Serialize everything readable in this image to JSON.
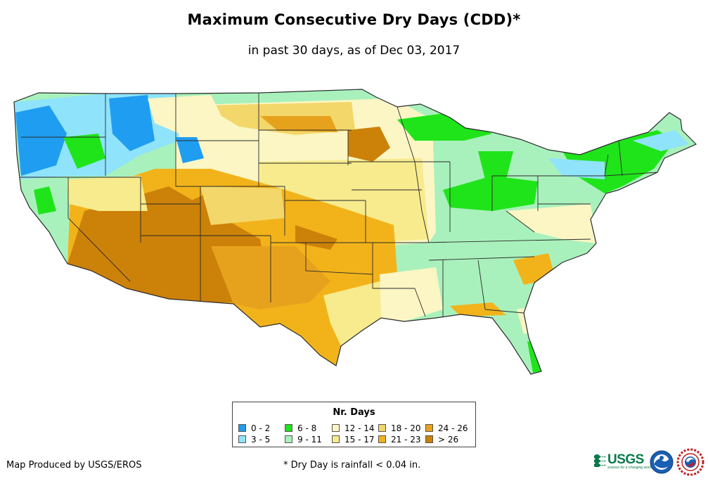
{
  "title": "Maximum Consecutive Dry Days (CDD)*",
  "subtitle": "in past 30 days, as of Dec 03, 2017",
  "legend": {
    "title": "Nr. Days",
    "items": [
      {
        "label": "0 - 2",
        "color": "#1f9df0"
      },
      {
        "label": "3 - 5",
        "color": "#8fe3fb"
      },
      {
        "label": "6 - 8",
        "color": "#1fe41a"
      },
      {
        "label": "9 - 11",
        "color": "#a9f1bc"
      },
      {
        "label": "12 - 14",
        "color": "#fbf6c4"
      },
      {
        "label": "15 - 17",
        "color": "#f7eb8d"
      },
      {
        "label": "18 - 20",
        "color": "#f3d76a"
      },
      {
        "label": "21 - 23",
        "color": "#f2b31a"
      },
      {
        "label": "24 - 26",
        "color": "#e7a21d"
      },
      {
        "label": "> 26",
        "color": "#cc8109"
      }
    ]
  },
  "footer": {
    "credit": "Map Produced by USGS/EROS",
    "note": "* Dry Day is rainfall < 0.04 in."
  },
  "logos": {
    "usgs": "USGS",
    "usgs_tagline": "science for a changing world",
    "noaa": "NOAA",
    "nws": "NWS"
  },
  "colors": {
    "state_border": "#2a2a2a"
  }
}
